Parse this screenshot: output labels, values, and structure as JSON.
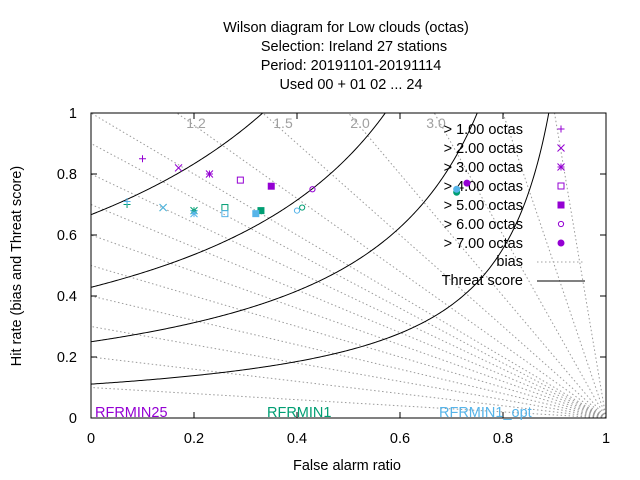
{
  "chart_data": {
    "type": "scatter",
    "title_lines": [
      "Wilson diagram  for Low clouds (octas)",
      "Selection: Ireland      27 stations",
      "Period: 20191101-20191114",
      "Used  00 + 01 02 ... 24"
    ],
    "xlabel": "False alarm ratio",
    "ylabel": "Hit rate (bias and Threat score)",
    "xlim": [
      0,
      1
    ],
    "ylim": [
      0,
      1
    ],
    "x_ticks": [
      "0",
      "0.2",
      "0.4",
      "0.6",
      "0.8",
      "1"
    ],
    "y_ticks": [
      "0",
      "0.2",
      "0.4",
      "0.6",
      "0.8",
      "1"
    ],
    "bias_labels": [
      "1.2",
      "1.5",
      "2.0",
      "3.0"
    ],
    "bias_label_values": [
      1.2,
      1.5,
      2.0,
      3.0
    ],
    "bias_lines": [
      0.1,
      0.2,
      0.3,
      0.4,
      0.5,
      0.6,
      0.7,
      0.8,
      0.9,
      1.0,
      1.2,
      1.5,
      2.0,
      3.0,
      5.0,
      10.0
    ],
    "threat_lines": [
      0.1,
      0.2,
      0.3,
      0.4,
      0.5,
      0.6,
      0.7,
      0.8
    ],
    "legend": {
      "entries": [
        "> 1.00 octas",
        "> 2.00 octas",
        "> 3.00 octas",
        "> 4.00 octas",
        "> 5.00 octas",
        "> 6.00 octas",
        "> 7.00 octas"
      ],
      "bias": "bias",
      "threat": "Threat score",
      "placement": "top-right"
    },
    "models": [
      {
        "label": "RFRMIN25",
        "color": "#9400d3"
      },
      {
        "label": "RFRMIN1",
        "color": "#009e73"
      },
      {
        "label": "RFRMIN1_opt",
        "color": "#56b4e9"
      }
    ],
    "series": [
      {
        "model": "RFRMIN25",
        "color": "#9400d3",
        "points": [
          {
            "x": 0.1,
            "y": 0.85,
            "m": "plus"
          },
          {
            "x": 0.17,
            "y": 0.82,
            "m": "x"
          },
          {
            "x": 0.23,
            "y": 0.8,
            "m": "star"
          },
          {
            "x": 0.29,
            "y": 0.78,
            "m": "square"
          },
          {
            "x": 0.35,
            "y": 0.76,
            "m": "square-filled"
          },
          {
            "x": 0.43,
            "y": 0.75,
            "m": "circle"
          },
          {
            "x": 0.73,
            "y": 0.77,
            "m": "circle-filled"
          }
        ]
      },
      {
        "model": "RFRMIN1",
        "color": "#009e73",
        "points": [
          {
            "x": 0.07,
            "y": 0.7,
            "m": "plus"
          },
          {
            "x": 0.14,
            "y": 0.69,
            "m": "x"
          },
          {
            "x": 0.2,
            "y": 0.68,
            "m": "star"
          },
          {
            "x": 0.26,
            "y": 0.69,
            "m": "square"
          },
          {
            "x": 0.33,
            "y": 0.68,
            "m": "square-filled"
          },
          {
            "x": 0.41,
            "y": 0.69,
            "m": "circle"
          },
          {
            "x": 0.71,
            "y": 0.74,
            "m": "circle-filled"
          }
        ]
      },
      {
        "model": "RFRMIN1_opt",
        "color": "#56b4e9",
        "points": [
          {
            "x": 0.07,
            "y": 0.71,
            "m": "plus"
          },
          {
            "x": 0.14,
            "y": 0.69,
            "m": "x"
          },
          {
            "x": 0.2,
            "y": 0.67,
            "m": "star"
          },
          {
            "x": 0.26,
            "y": 0.67,
            "m": "square"
          },
          {
            "x": 0.32,
            "y": 0.67,
            "m": "square-filled"
          },
          {
            "x": 0.4,
            "y": 0.68,
            "m": "circle"
          },
          {
            "x": 0.71,
            "y": 0.75,
            "m": "circle-filled"
          }
        ]
      }
    ]
  }
}
